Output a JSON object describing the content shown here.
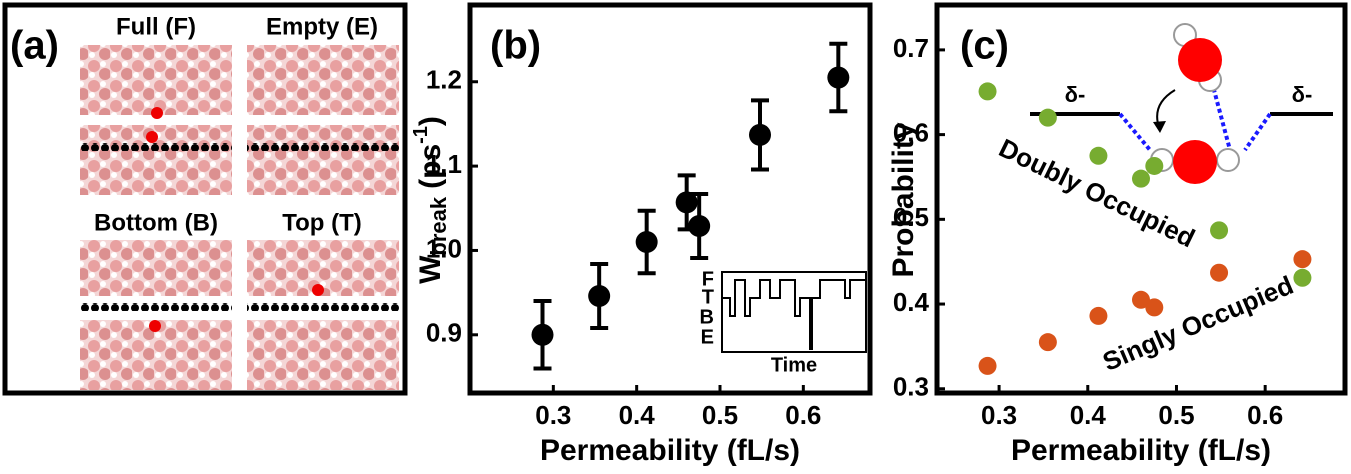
{
  "panel_a": {
    "label": "(a)",
    "snapshots": [
      "Full (F)",
      "Empty (E)",
      "Bottom (B)",
      "Top (T)"
    ]
  },
  "chart_data": [
    {
      "type": "scatter",
      "label": "(b)",
      "x_label": "Permeability (fL/s)",
      "y_label": {
        "main": "W",
        "sub": "break",
        "unit": "(ps",
        "sup": "-1",
        "close": ")"
      },
      "x": [
        0.287,
        0.355,
        0.412,
        0.46,
        0.475,
        0.548,
        0.642
      ],
      "series": [
        {
          "color": "#000000",
          "values": [
            0.9,
            0.946,
            1.01,
            1.057,
            1.029,
            1.137,
            1.205
          ],
          "errors": [
            0.04,
            0.038,
            0.037,
            0.032,
            0.038,
            0.041,
            0.04
          ]
        }
      ],
      "xlim": [
        0.2,
        0.68
      ],
      "ylim": [
        0.831,
        1.291
      ],
      "xticks": [
        0.3,
        0.4,
        0.5,
        0.6
      ],
      "yticks": [
        0.9,
        {
          "value": 1,
          "label": "1.0"
        },
        1.1,
        1.2
      ],
      "inset": {
        "levels": [
          "F",
          "T",
          "B",
          "E"
        ],
        "x_label": "Time"
      }
    },
    {
      "type": "scatter",
      "label": "(c)",
      "x_label": "Permeability (fL/s)",
      "y_label": "Probability",
      "x": [
        0.287,
        0.355,
        0.412,
        0.46,
        0.475,
        0.548,
        0.642
      ],
      "series": [
        {
          "name": "Doubly Occupied",
          "color": "#77ac30",
          "values": [
            0.651,
            0.62,
            0.575,
            0.548,
            0.563,
            0.487,
            0.431
          ]
        },
        {
          "name": "Singly Occupied",
          "color": "#d95319",
          "values": [
            0.327,
            0.355,
            0.386,
            0.405,
            0.396,
            0.437,
            0.453
          ]
        }
      ],
      "xlim": [
        0.23,
        0.69
      ],
      "ylim": [
        0.295,
        0.753
      ],
      "xticks": [
        0.3,
        0.4,
        0.5,
        0.6
      ],
      "yticks": [
        0.3,
        0.4,
        0.5,
        0.6,
        0.7
      ],
      "annotation": "δ-"
    }
  ]
}
